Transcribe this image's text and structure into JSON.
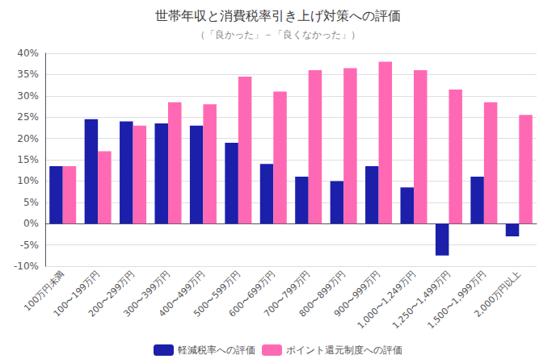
{
  "chart_data": {
    "type": "bar",
    "title": "世帯年収と消費税率引き上げ対策への評価",
    "subtitle": "（「良かった」－「良くなかった」）",
    "categories": [
      "100万円未満",
      "100〜199万円",
      "200〜299万円",
      "300〜399万円",
      "400〜499万円",
      "500〜599万円",
      "600〜699万円",
      "700〜799万円",
      "800〜899万円",
      "900〜999万円",
      "1,000〜1,249万円",
      "1,250〜1,499万円",
      "1,500〜1,999万円",
      "2,000万円以上"
    ],
    "series": [
      {
        "name": "軽減税率への評価",
        "color": "#1b1faa",
        "values": [
          13.5,
          24.5,
          24.0,
          23.5,
          23.0,
          19.0,
          14.0,
          11.0,
          10.0,
          13.5,
          8.5,
          -7.5,
          11.0,
          -3.0
        ]
      },
      {
        "name": "ポイント還元制度への評価",
        "color": "#ff69b4",
        "values": [
          13.5,
          17.0,
          23.0,
          28.5,
          28.0,
          34.5,
          31.0,
          36.0,
          36.5,
          38.0,
          36.0,
          31.5,
          28.5,
          25.5
        ]
      }
    ],
    "ylim": [
      -10,
      40
    ],
    "yticks": [
      {
        "value": -10,
        "label": "-10%"
      },
      {
        "value": -5,
        "label": "-5%"
      },
      {
        "value": 0,
        "label": "0%"
      },
      {
        "value": 5,
        "label": "5%"
      },
      {
        "value": 10,
        "label": "10%"
      },
      {
        "value": 15,
        "label": "15%"
      },
      {
        "value": 20,
        "label": "20%"
      },
      {
        "value": 25,
        "label": "25%"
      },
      {
        "value": 30,
        "label": "30%"
      },
      {
        "value": 35,
        "label": "35%"
      },
      {
        "value": 40,
        "label": "40%"
      }
    ],
    "grid": true,
    "legend": "bottom"
  }
}
